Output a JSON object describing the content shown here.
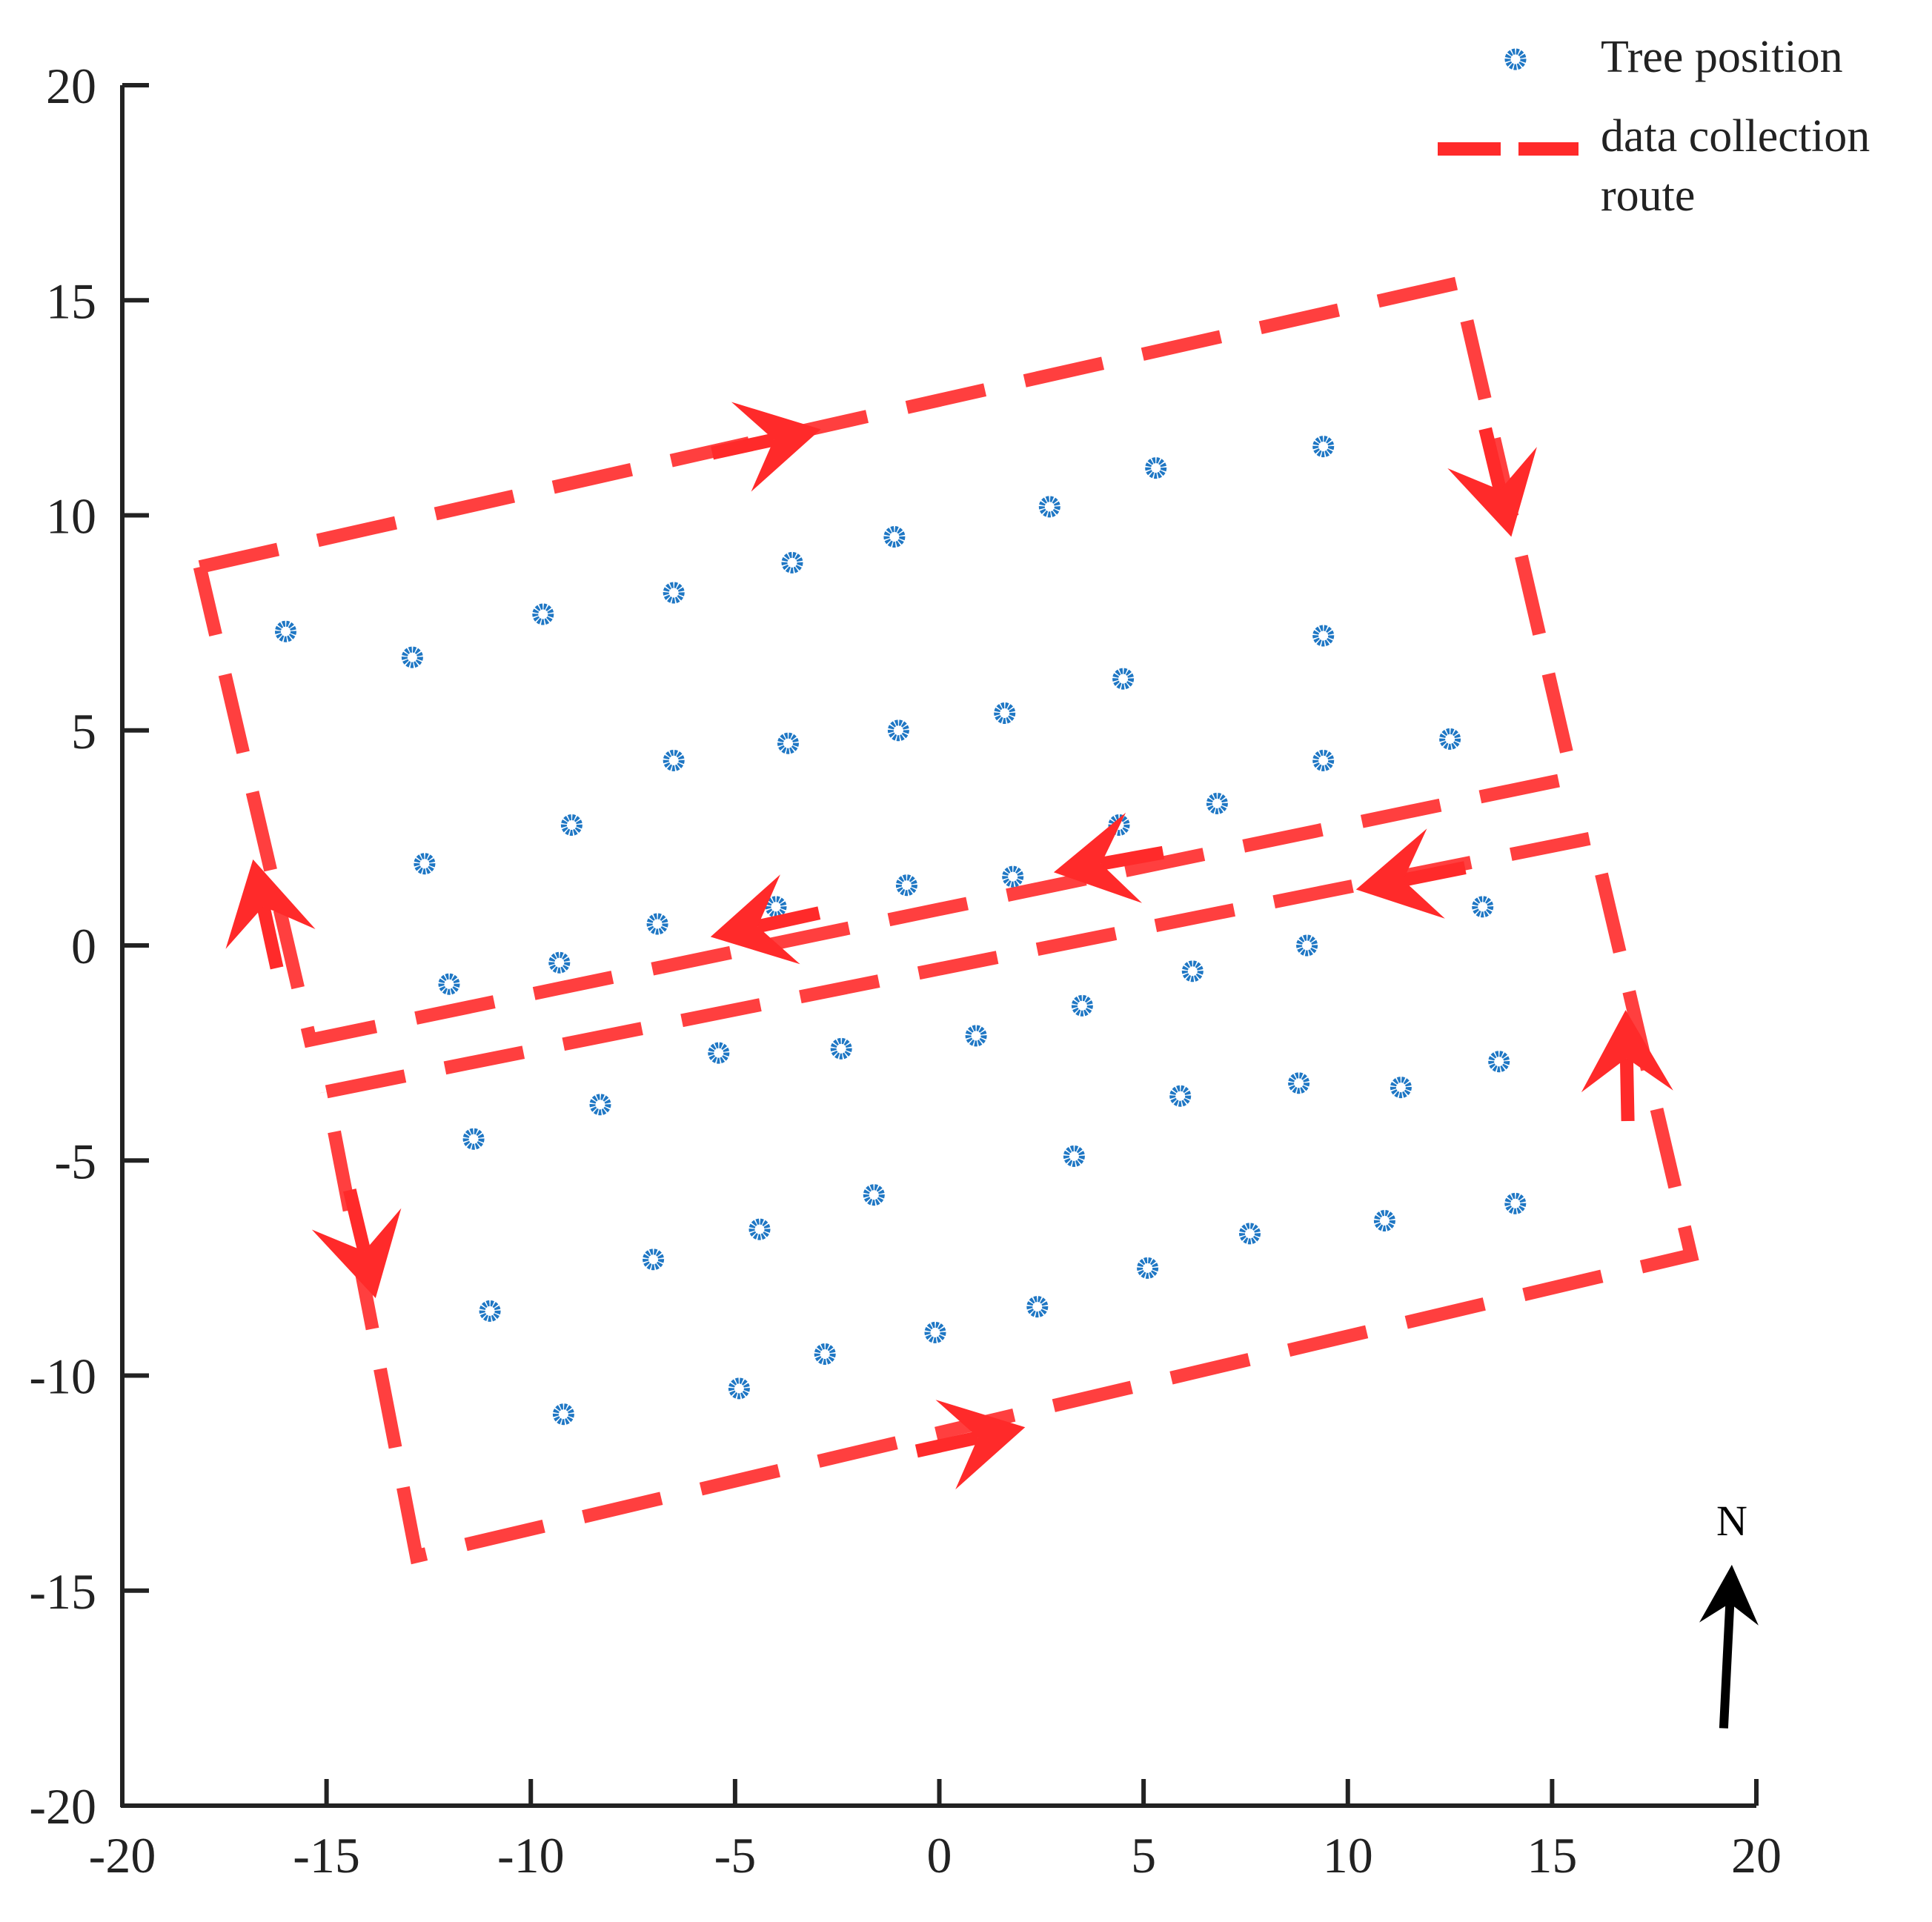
{
  "chart_data": {
    "type": "scatter",
    "xlim": [
      -20,
      20
    ],
    "ylim": [
      -20,
      20
    ],
    "xticks": [
      -20,
      -15,
      -10,
      -5,
      0,
      5,
      10,
      15,
      20
    ],
    "yticks": [
      -20,
      -15,
      -10,
      -5,
      0,
      5,
      10,
      15,
      20
    ],
    "xtick_labels": [
      "-20",
      "-15",
      "-10",
      "-5",
      "0",
      "5",
      "10",
      "15",
      "20"
    ],
    "ytick_labels": [
      "-20",
      "-15",
      "-10",
      "-5",
      "0",
      "5",
      "10",
      "15",
      "20"
    ],
    "grid": false,
    "legend_position": "top-right",
    "colors": {
      "trees": "#1f77c4",
      "route": "#ff2a2a",
      "axis": "#222222",
      "north": "#000000"
    },
    "series": [
      {
        "name": "Tree position",
        "marker": "circle",
        "points": [
          [
            -16.0,
            7.3
          ],
          [
            -12.9,
            6.7
          ],
          [
            -9.7,
            7.7
          ],
          [
            -6.5,
            8.2
          ],
          [
            -3.6,
            8.9
          ],
          [
            -1.1,
            9.5
          ],
          [
            2.7,
            10.2
          ],
          [
            5.3,
            11.1
          ],
          [
            9.4,
            11.6
          ],
          [
            -12.6,
            1.9
          ],
          [
            -9.0,
            2.8
          ],
          [
            -6.5,
            4.3
          ],
          [
            -3.7,
            4.7
          ],
          [
            -1.0,
            5.0
          ],
          [
            1.6,
            5.4
          ],
          [
            4.5,
            6.2
          ],
          [
            9.4,
            7.2
          ],
          [
            -12.0,
            -0.9
          ],
          [
            -9.3,
            -0.4
          ],
          [
            -6.9,
            0.5
          ],
          [
            -4.0,
            0.9
          ],
          [
            -0.8,
            1.4
          ],
          [
            1.8,
            1.6
          ],
          [
            4.4,
            2.8
          ],
          [
            6.8,
            3.3
          ],
          [
            9.4,
            4.3
          ],
          [
            12.5,
            4.8
          ],
          [
            -5.4,
            -2.5
          ],
          [
            -2.4,
            -2.4
          ],
          [
            0.9,
            -2.1
          ],
          [
            3.5,
            -1.4
          ],
          [
            6.2,
            -0.6
          ],
          [
            9.0,
            0.0
          ],
          [
            13.3,
            0.9
          ],
          [
            -11.4,
            -4.5
          ],
          [
            -8.3,
            -3.7
          ],
          [
            5.9,
            -3.5
          ],
          [
            8.8,
            -3.2
          ],
          [
            11.3,
            -3.3
          ],
          [
            13.7,
            -2.7
          ],
          [
            -11.0,
            -8.5
          ],
          [
            -7.0,
            -7.3
          ],
          [
            -4.4,
            -6.6
          ],
          [
            -1.6,
            -5.8
          ],
          [
            3.3,
            -4.9
          ],
          [
            5.1,
            -7.5
          ],
          [
            7.6,
            -6.7
          ],
          [
            10.9,
            -6.4
          ],
          [
            14.1,
            -6.0
          ],
          [
            -9.2,
            -10.9
          ],
          [
            -4.9,
            -10.3
          ],
          [
            -2.8,
            -9.5
          ],
          [
            -0.1,
            -9.0
          ],
          [
            2.4,
            -8.4
          ]
        ]
      },
      {
        "name": "data collection route",
        "line": "dashed",
        "segments": [
          {
            "path": [
              [
                -18.1,
                8.8
              ],
              [
                12.7,
                15.4
              ],
              [
                15.5,
                3.9
              ],
              [
                -15.4,
                -2.2
              ],
              [
                -18.1,
                8.8
              ]
            ]
          },
          {
            "path": [
              [
                -15.0,
                -3.4
              ],
              [
                16.0,
                2.5
              ],
              [
                18.4,
                -7.2
              ],
              [
                -12.8,
                -14.2
              ],
              [
                -15.0,
                -3.4
              ]
            ]
          }
        ],
        "direction_arrows": [
          {
            "at": [
              -2.9,
              12.0
            ],
            "dir": [
              1,
              0.22
            ]
          },
          {
            "at": [
              14.0,
              9.5
            ],
            "dir": [
              0.24,
              -1
            ]
          },
          {
            "at": [
              2.8,
              1.7
            ],
            "dir": [
              -1,
              -0.18
            ]
          },
          {
            "at": [
              -5.6,
              0.2
            ],
            "dir": [
              -1,
              -0.22
            ]
          },
          {
            "at": [
              -16.8,
              2.0
            ],
            "dir": [
              -0.22,
              1
            ]
          },
          {
            "at": [
              -13.8,
              -8.2
            ],
            "dir": [
              0.24,
              -1
            ]
          },
          {
            "at": [
              2.1,
              -11.2
            ],
            "dir": [
              1,
              0.22
            ]
          },
          {
            "at": [
              10.2,
              1.3
            ],
            "dir": [
              -1,
              -0.2
            ]
          },
          {
            "at": [
              16.8,
              -1.5
            ],
            "dir": [
              -0.02,
              1
            ]
          }
        ]
      }
    ],
    "north_arrow": {
      "label": "N",
      "from": [
        19.2,
        -18.2
      ],
      "to": [
        19.4,
        -14.4
      ]
    }
  }
}
